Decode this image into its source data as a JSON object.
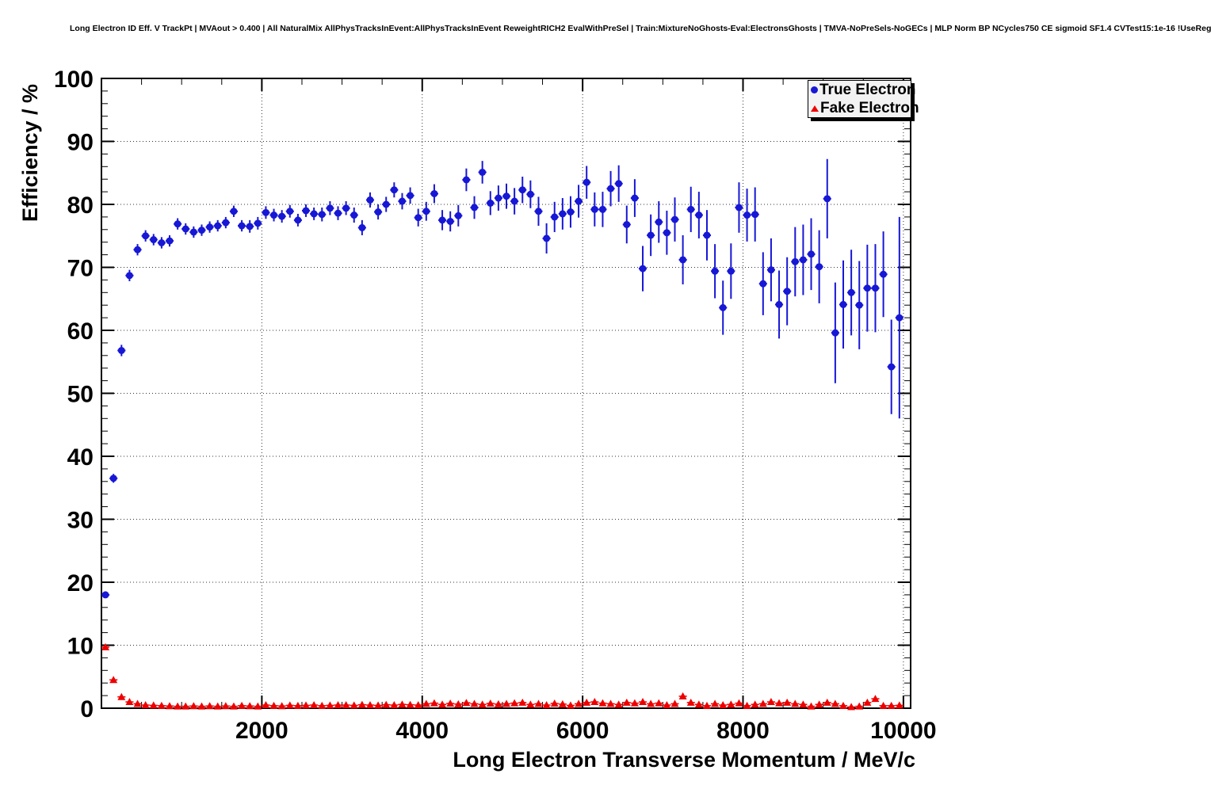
{
  "header": {
    "title": "Long Electron ID Eff. V TrackPt | MVAout > 0.400 | All NaturalMix AllPhysTracksInEvent:AllPhysTracksInEvent ReweightRICH2 EvalWithPreSel | Train:MixtureNoGhosts-Eval:ElectronsGhosts | TMVA-NoPreSels-NoGECs | MLP Norm BP NCycles750 CE sigmoid SF1.4 CVTest15:1e-16 !UseReg"
  },
  "chart_data": {
    "type": "scatter",
    "title": "Long Electron ID Eff. V TrackPt | MVAout > 0.400 | All NaturalMix AllPhysTracksInEvent:AllPhysTracksInEvent ReweightRICH2 EvalWithPreSel | Train:MixtureNoGhosts-Eval:ElectronsGhosts | TMVA-NoPreSels-NoGECs | MLP Norm BP NCycles750 CE sigmoid SF1.4 CVTest15:1e-16 !UseReg",
    "xlabel": "Long Electron Transverse Momentum / MeV/c",
    "ylabel": "Efficiency / %",
    "xlim": [
      0,
      10090
    ],
    "ylim": [
      0,
      100
    ],
    "x_ticks": [
      2000,
      4000,
      6000,
      8000,
      10000
    ],
    "x_tick_labels": [
      "2000",
      "4000",
      "6000",
      "8000",
      "10000"
    ],
    "x_minor_step": 500,
    "y_ticks": [
      0,
      10,
      20,
      30,
      40,
      50,
      60,
      70,
      80,
      90,
      100
    ],
    "y_tick_labels": [
      "0",
      "10",
      "20",
      "30",
      "40",
      "50",
      "60",
      "70",
      "80",
      "90",
      "100"
    ],
    "y_minor_step": 2,
    "grid": {
      "on": true,
      "style": "dotted",
      "at": "major-ticks",
      "color": "#333333"
    },
    "legend": {
      "position": "top-right",
      "items": [
        {
          "label": "True Electron",
          "marker": "circle",
          "color": "#1717d6"
        },
        {
          "label": "Fake Electron",
          "marker": "triangle",
          "color": "#ee0000"
        }
      ]
    },
    "bin_half_width_mev": 50,
    "series": [
      {
        "name": "True Electron",
        "marker": "circle",
        "color": "#1717d6",
        "points": [
          [
            50,
            18.0,
            0.5
          ],
          [
            150,
            36.5,
            0.7
          ],
          [
            250,
            56.8,
            0.9
          ],
          [
            350,
            68.7,
            0.9
          ],
          [
            450,
            72.8,
            0.9
          ],
          [
            550,
            75.0,
            0.9
          ],
          [
            650,
            74.4,
            0.9
          ],
          [
            750,
            73.9,
            0.9
          ],
          [
            850,
            74.2,
            0.9
          ],
          [
            950,
            76.9,
            0.9
          ],
          [
            1050,
            76.1,
            0.9
          ],
          [
            1150,
            75.6,
            0.9
          ],
          [
            1250,
            75.9,
            0.9
          ],
          [
            1350,
            76.4,
            0.9
          ],
          [
            1450,
            76.6,
            0.9
          ],
          [
            1550,
            77.1,
            0.9
          ],
          [
            1650,
            78.9,
            0.9
          ],
          [
            1750,
            76.6,
            0.9
          ],
          [
            1850,
            76.5,
            1.0
          ],
          [
            1950,
            77.0,
            1.0
          ],
          [
            2050,
            78.7,
            1.0
          ],
          [
            2150,
            78.3,
            1.0
          ],
          [
            2250,
            78.1,
            1.0
          ],
          [
            2350,
            78.9,
            1.0
          ],
          [
            2450,
            77.5,
            1.0
          ],
          [
            2550,
            79.0,
            1.0
          ],
          [
            2650,
            78.5,
            1.0
          ],
          [
            2750,
            78.4,
            1.1
          ],
          [
            2850,
            79.4,
            1.1
          ],
          [
            2950,
            78.6,
            1.1
          ],
          [
            3050,
            79.4,
            1.1
          ],
          [
            3150,
            78.3,
            1.2
          ],
          [
            3250,
            76.3,
            1.2
          ],
          [
            3350,
            80.7,
            1.2
          ],
          [
            3450,
            78.8,
            1.2
          ],
          [
            3550,
            80.0,
            1.2
          ],
          [
            3650,
            82.3,
            1.2
          ],
          [
            3750,
            80.5,
            1.3
          ],
          [
            3850,
            81.4,
            1.3
          ],
          [
            3950,
            77.9,
            1.4
          ],
          [
            4050,
            78.9,
            1.5
          ],
          [
            4150,
            81.7,
            1.5
          ],
          [
            4250,
            77.5,
            1.6
          ],
          [
            4350,
            77.3,
            1.6
          ],
          [
            4450,
            78.2,
            1.7
          ],
          [
            4550,
            83.9,
            1.8
          ],
          [
            4650,
            79.5,
            1.8
          ],
          [
            4750,
            85.1,
            1.8
          ],
          [
            4850,
            80.2,
            1.9
          ],
          [
            4950,
            81.0,
            2.0
          ],
          [
            5050,
            81.3,
            2.0
          ],
          [
            5150,
            80.5,
            2.1
          ],
          [
            5250,
            82.3,
            2.1
          ],
          [
            5350,
            81.6,
            2.2
          ],
          [
            5450,
            78.9,
            2.3
          ],
          [
            5550,
            74.6,
            2.4
          ],
          [
            5650,
            78.0,
            2.4
          ],
          [
            5750,
            78.5,
            2.5
          ],
          [
            5850,
            78.8,
            2.5
          ],
          [
            5950,
            80.5,
            2.6
          ],
          [
            6050,
            83.5,
            2.6
          ],
          [
            6150,
            79.2,
            2.7
          ],
          [
            6250,
            79.2,
            2.8
          ],
          [
            6350,
            82.5,
            2.8
          ],
          [
            6450,
            83.3,
            2.9
          ],
          [
            6550,
            76.8,
            3.0
          ],
          [
            6650,
            81.0,
            3.0
          ],
          [
            6750,
            69.8,
            3.6
          ],
          [
            6850,
            75.1,
            3.3
          ],
          [
            6950,
            77.2,
            3.3
          ],
          [
            7050,
            75.5,
            3.5
          ],
          [
            7150,
            77.6,
            3.5
          ],
          [
            7250,
            71.2,
            3.9
          ],
          [
            7350,
            79.2,
            3.6
          ],
          [
            7450,
            78.3,
            3.7
          ],
          [
            7550,
            75.1,
            4.0
          ],
          [
            7650,
            69.4,
            4.3
          ],
          [
            7750,
            63.6,
            4.3
          ],
          [
            7850,
            69.4,
            4.4
          ],
          [
            7950,
            79.5,
            4.0
          ],
          [
            8050,
            78.3,
            4.2
          ],
          [
            8150,
            78.4,
            4.3
          ],
          [
            8250,
            67.4,
            5.0
          ],
          [
            8350,
            69.6,
            5.0
          ],
          [
            8450,
            64.1,
            5.4
          ],
          [
            8550,
            66.2,
            5.4
          ],
          [
            8650,
            70.9,
            5.5
          ],
          [
            8750,
            71.2,
            5.6
          ],
          [
            8850,
            72.1,
            5.7
          ],
          [
            8950,
            70.1,
            5.8
          ],
          [
            9050,
            80.9,
            6.3
          ],
          [
            9150,
            59.6,
            8.0
          ],
          [
            9250,
            64.1,
            7.0
          ],
          [
            9350,
            66.0,
            6.8
          ],
          [
            9450,
            64.0,
            7.0
          ],
          [
            9550,
            66.7,
            6.9
          ],
          [
            9650,
            66.7,
            7.0
          ],
          [
            9750,
            68.9,
            6.8
          ],
          [
            9850,
            54.2,
            7.5
          ],
          [
            9950,
            62.0,
            16.0
          ]
        ]
      },
      {
        "name": "Fake Electron",
        "marker": "triangle",
        "color": "#ee0000",
        "points": [
          [
            50,
            9.7,
            0.4
          ],
          [
            150,
            4.5,
            0.3
          ],
          [
            250,
            1.8,
            0.2
          ],
          [
            350,
            1.0,
            0.15
          ],
          [
            450,
            0.7,
            0.12
          ],
          [
            550,
            0.5,
            0.1
          ],
          [
            650,
            0.45,
            0.1
          ],
          [
            750,
            0.4,
            0.1
          ],
          [
            850,
            0.35,
            0.1
          ],
          [
            950,
            0.3,
            0.08
          ],
          [
            1050,
            0.3,
            0.08
          ],
          [
            1150,
            0.35,
            0.08
          ],
          [
            1250,
            0.3,
            0.08
          ],
          [
            1350,
            0.35,
            0.08
          ],
          [
            1450,
            0.3,
            0.08
          ],
          [
            1550,
            0.35,
            0.08
          ],
          [
            1650,
            0.3,
            0.08
          ],
          [
            1750,
            0.4,
            0.09
          ],
          [
            1850,
            0.35,
            0.09
          ],
          [
            1950,
            0.3,
            0.09
          ],
          [
            2050,
            0.5,
            0.1
          ],
          [
            2150,
            0.4,
            0.1
          ],
          [
            2250,
            0.35,
            0.1
          ],
          [
            2350,
            0.45,
            0.1
          ],
          [
            2450,
            0.4,
            0.1
          ],
          [
            2550,
            0.45,
            0.1
          ],
          [
            2650,
            0.5,
            0.1
          ],
          [
            2750,
            0.4,
            0.1
          ],
          [
            2850,
            0.45,
            0.1
          ],
          [
            2950,
            0.5,
            0.11
          ],
          [
            3050,
            0.5,
            0.11
          ],
          [
            3150,
            0.45,
            0.11
          ],
          [
            3250,
            0.55,
            0.11
          ],
          [
            3350,
            0.5,
            0.11
          ],
          [
            3450,
            0.45,
            0.11
          ],
          [
            3550,
            0.55,
            0.12
          ],
          [
            3650,
            0.5,
            0.12
          ],
          [
            3750,
            0.6,
            0.12
          ],
          [
            3850,
            0.55,
            0.12
          ],
          [
            3950,
            0.5,
            0.12
          ],
          [
            4050,
            0.7,
            0.14
          ],
          [
            4150,
            0.8,
            0.14
          ],
          [
            4250,
            0.6,
            0.13
          ],
          [
            4350,
            0.75,
            0.14
          ],
          [
            4450,
            0.65,
            0.14
          ],
          [
            4550,
            0.85,
            0.15
          ],
          [
            4650,
            0.7,
            0.14
          ],
          [
            4750,
            0.6,
            0.14
          ],
          [
            4850,
            0.75,
            0.15
          ],
          [
            4950,
            0.65,
            0.15
          ],
          [
            5050,
            0.7,
            0.15
          ],
          [
            5150,
            0.8,
            0.16
          ],
          [
            5250,
            0.9,
            0.17
          ],
          [
            5350,
            0.6,
            0.15
          ],
          [
            5450,
            0.7,
            0.16
          ],
          [
            5550,
            0.5,
            0.14
          ],
          [
            5650,
            0.75,
            0.16
          ],
          [
            5750,
            0.65,
            0.16
          ],
          [
            5850,
            0.45,
            0.14
          ],
          [
            5950,
            0.7,
            0.17
          ],
          [
            6050,
            0.9,
            0.19
          ],
          [
            6150,
            1.0,
            0.2
          ],
          [
            6250,
            0.8,
            0.18
          ],
          [
            6350,
            0.7,
            0.18
          ],
          [
            6450,
            0.6,
            0.17
          ],
          [
            6550,
            0.9,
            0.2
          ],
          [
            6650,
            0.8,
            0.2
          ],
          [
            6750,
            1.0,
            0.22
          ],
          [
            6850,
            0.7,
            0.19
          ],
          [
            6950,
            0.8,
            0.2
          ],
          [
            7050,
            0.5,
            0.17
          ],
          [
            7150,
            0.7,
            0.2
          ],
          [
            7250,
            1.9,
            0.35
          ],
          [
            7350,
            0.9,
            0.23
          ],
          [
            7450,
            0.6,
            0.19
          ],
          [
            7550,
            0.4,
            0.16
          ],
          [
            7650,
            0.7,
            0.21
          ],
          [
            7750,
            0.5,
            0.18
          ],
          [
            7850,
            0.6,
            0.2
          ],
          [
            7950,
            0.8,
            0.23
          ],
          [
            8050,
            0.4,
            0.17
          ],
          [
            8150,
            0.6,
            0.2
          ],
          [
            8250,
            0.7,
            0.22
          ],
          [
            8350,
            1.0,
            0.27
          ],
          [
            8450,
            0.8,
            0.24
          ],
          [
            8550,
            0.9,
            0.26
          ],
          [
            8650,
            0.7,
            0.23
          ],
          [
            8750,
            0.6,
            0.22
          ],
          [
            8850,
            0.3,
            0.15
          ],
          [
            8950,
            0.6,
            0.22
          ],
          [
            9050,
            0.9,
            0.28
          ],
          [
            9150,
            0.7,
            0.25
          ],
          [
            9250,
            0.4,
            0.19
          ],
          [
            9350,
            0.2,
            0.13
          ],
          [
            9450,
            0.3,
            0.16
          ],
          [
            9550,
            0.9,
            0.3
          ],
          [
            9650,
            1.5,
            0.4
          ],
          [
            9750,
            0.4,
            0.2
          ],
          [
            9850,
            0.4,
            0.2
          ],
          [
            9950,
            0.45,
            0.22
          ]
        ]
      }
    ]
  }
}
